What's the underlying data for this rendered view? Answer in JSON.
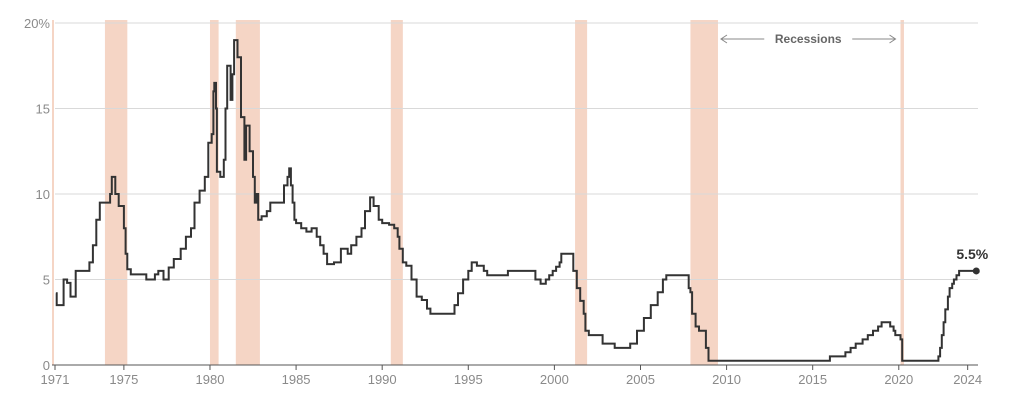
{
  "chart_data": {
    "type": "line",
    "title": "",
    "xlabel": "",
    "ylabel": "",
    "xlim": [
      1971.0,
      2024.6
    ],
    "ylim": [
      0,
      20
    ],
    "y_ticks": [
      0,
      5,
      10,
      15,
      20
    ],
    "y_tick_labels": [
      "0",
      "5",
      "10",
      "15",
      "20%"
    ],
    "x_ticks": [
      1971,
      1975,
      1980,
      1985,
      1990,
      1995,
      2000,
      2005,
      2010,
      2015,
      2020,
      2024
    ],
    "x_tick_labels": [
      "1971",
      "1975",
      "1980",
      "1985",
      "1990",
      "1995",
      "2000",
      "2005",
      "2010",
      "2015",
      "2020",
      "2024"
    ],
    "grid": "horizontal",
    "line_color": "#333333",
    "recession_color": "#f5d5c5",
    "recession_label": "Recessions",
    "recessions": [
      [
        1969.9,
        1970.9
      ],
      [
        1973.9,
        1975.2
      ],
      [
        1980.0,
        1980.5
      ],
      [
        1981.5,
        1982.9
      ],
      [
        1990.5,
        1991.2
      ],
      [
        2001.2,
        2001.9
      ],
      [
        2007.9,
        2009.5
      ],
      [
        2020.1,
        2020.3
      ]
    ],
    "end_label": "5.5%",
    "series": [
      {
        "values": [
          [
            1971.05,
            4.2
          ],
          [
            1971.1,
            3.5
          ],
          [
            1971.5,
            5.0
          ],
          [
            1971.7,
            4.8
          ],
          [
            1971.9,
            4.0
          ],
          [
            1972.2,
            5.5
          ],
          [
            1972.6,
            5.5
          ],
          [
            1973.0,
            6.0
          ],
          [
            1973.2,
            7.0
          ],
          [
            1973.4,
            8.5
          ],
          [
            1973.6,
            9.5
          ],
          [
            1973.9,
            9.5
          ],
          [
            1974.2,
            10.0
          ],
          [
            1974.3,
            11.0
          ],
          [
            1974.5,
            10.0
          ],
          [
            1974.7,
            9.3
          ],
          [
            1975.0,
            8.0
          ],
          [
            1975.1,
            6.5
          ],
          [
            1975.2,
            5.6
          ],
          [
            1975.4,
            5.3
          ],
          [
            1976.0,
            5.3
          ],
          [
            1976.3,
            5.0
          ],
          [
            1976.8,
            5.3
          ],
          [
            1977.0,
            5.5
          ],
          [
            1977.3,
            5.0
          ],
          [
            1977.6,
            5.7
          ],
          [
            1977.9,
            6.2
          ],
          [
            1978.3,
            6.8
          ],
          [
            1978.6,
            7.5
          ],
          [
            1978.9,
            8.0
          ],
          [
            1979.1,
            9.5
          ],
          [
            1979.4,
            10.2
          ],
          [
            1979.7,
            11.0
          ],
          [
            1979.9,
            13.0
          ],
          [
            1980.1,
            13.5
          ],
          [
            1980.2,
            16.0
          ],
          [
            1980.25,
            16.5
          ],
          [
            1980.35,
            15.0
          ],
          [
            1980.4,
            11.3
          ],
          [
            1980.6,
            11.0
          ],
          [
            1980.8,
            12.0
          ],
          [
            1980.9,
            15.0
          ],
          [
            1981.0,
            17.5
          ],
          [
            1981.2,
            15.5
          ],
          [
            1981.3,
            17.0
          ],
          [
            1981.4,
            19.0
          ],
          [
            1981.6,
            18.0
          ],
          [
            1981.8,
            14.5
          ],
          [
            1982.0,
            12.0
          ],
          [
            1982.1,
            14.0
          ],
          [
            1982.3,
            12.5
          ],
          [
            1982.5,
            11.0
          ],
          [
            1982.6,
            9.5
          ],
          [
            1982.7,
            10.0
          ],
          [
            1982.8,
            8.5
          ],
          [
            1983.0,
            8.7
          ],
          [
            1983.3,
            9.0
          ],
          [
            1983.5,
            9.5
          ],
          [
            1983.8,
            9.5
          ],
          [
            1984.0,
            9.5
          ],
          [
            1984.3,
            10.5
          ],
          [
            1984.5,
            11.0
          ],
          [
            1984.6,
            11.5
          ],
          [
            1984.7,
            10.5
          ],
          [
            1984.8,
            9.5
          ],
          [
            1984.9,
            8.5
          ],
          [
            1985.0,
            8.3
          ],
          [
            1985.3,
            8.0
          ],
          [
            1985.6,
            7.8
          ],
          [
            1985.9,
            8.0
          ],
          [
            1986.2,
            7.5
          ],
          [
            1986.4,
            7.0
          ],
          [
            1986.6,
            6.5
          ],
          [
            1986.8,
            5.9
          ],
          [
            1987.2,
            6.0
          ],
          [
            1987.6,
            6.8
          ],
          [
            1988.0,
            6.5
          ],
          [
            1988.2,
            7.0
          ],
          [
            1988.5,
            7.5
          ],
          [
            1988.8,
            8.0
          ],
          [
            1989.0,
            9.0
          ],
          [
            1989.3,
            9.8
          ],
          [
            1989.5,
            9.3
          ],
          [
            1989.8,
            8.5
          ],
          [
            1990.0,
            8.3
          ],
          [
            1990.4,
            8.2
          ],
          [
            1990.7,
            8.0
          ],
          [
            1990.9,
            7.5
          ],
          [
            1991.0,
            6.8
          ],
          [
            1991.2,
            6.0
          ],
          [
            1991.4,
            5.8
          ],
          [
            1991.7,
            5.0
          ],
          [
            1992.0,
            4.0
          ],
          [
            1992.3,
            3.8
          ],
          [
            1992.6,
            3.3
          ],
          [
            1992.8,
            3.0
          ],
          [
            1993.5,
            3.0
          ],
          [
            1994.0,
            3.0
          ],
          [
            1994.2,
            3.5
          ],
          [
            1994.4,
            4.2
          ],
          [
            1994.7,
            5.0
          ],
          [
            1995.0,
            5.5
          ],
          [
            1995.2,
            6.0
          ],
          [
            1995.5,
            5.8
          ],
          [
            1995.9,
            5.5
          ],
          [
            1996.1,
            5.25
          ],
          [
            1997.0,
            5.25
          ],
          [
            1997.3,
            5.5
          ],
          [
            1998.0,
            5.5
          ],
          [
            1998.8,
            5.5
          ],
          [
            1998.9,
            5.0
          ],
          [
            1999.2,
            4.75
          ],
          [
            1999.5,
            5.0
          ],
          [
            1999.7,
            5.25
          ],
          [
            1999.9,
            5.5
          ],
          [
            2000.1,
            5.75
          ],
          [
            2000.3,
            6.0
          ],
          [
            2000.4,
            6.5
          ],
          [
            2000.9,
            6.5
          ],
          [
            2001.1,
            5.5
          ],
          [
            2001.3,
            4.5
          ],
          [
            2001.5,
            3.75
          ],
          [
            2001.7,
            3.0
          ],
          [
            2001.8,
            2.0
          ],
          [
            2002.0,
            1.75
          ],
          [
            2002.8,
            1.25
          ],
          [
            2003.5,
            1.0
          ],
          [
            2004.4,
            1.25
          ],
          [
            2004.8,
            2.0
          ],
          [
            2005.2,
            2.75
          ],
          [
            2005.6,
            3.5
          ],
          [
            2006.0,
            4.25
          ],
          [
            2006.3,
            5.0
          ],
          [
            2006.5,
            5.25
          ],
          [
            2007.6,
            5.25
          ],
          [
            2007.8,
            4.5
          ],
          [
            2007.9,
            4.25
          ],
          [
            2008.0,
            3.0
          ],
          [
            2008.2,
            2.25
          ],
          [
            2008.4,
            2.0
          ],
          [
            2008.8,
            1.0
          ],
          [
            2008.95,
            0.25
          ],
          [
            2015.9,
            0.25
          ],
          [
            2016.0,
            0.5
          ],
          [
            2016.9,
            0.75
          ],
          [
            2017.2,
            1.0
          ],
          [
            2017.5,
            1.25
          ],
          [
            2017.9,
            1.5
          ],
          [
            2018.2,
            1.75
          ],
          [
            2018.5,
            2.0
          ],
          [
            2018.8,
            2.25
          ],
          [
            2019.0,
            2.5
          ],
          [
            2019.5,
            2.25
          ],
          [
            2019.7,
            2.0
          ],
          [
            2019.8,
            1.75
          ],
          [
            2020.1,
            1.5
          ],
          [
            2020.2,
            0.25
          ],
          [
            2022.2,
            0.25
          ],
          [
            2022.3,
            0.5
          ],
          [
            2022.4,
            1.0
          ],
          [
            2022.5,
            1.75
          ],
          [
            2022.6,
            2.5
          ],
          [
            2022.7,
            3.25
          ],
          [
            2022.85,
            4.0
          ],
          [
            2022.95,
            4.5
          ],
          [
            2023.1,
            4.75
          ],
          [
            2023.2,
            5.0
          ],
          [
            2023.35,
            5.25
          ],
          [
            2023.5,
            5.5
          ],
          [
            2024.5,
            5.5
          ]
        ]
      }
    ]
  }
}
